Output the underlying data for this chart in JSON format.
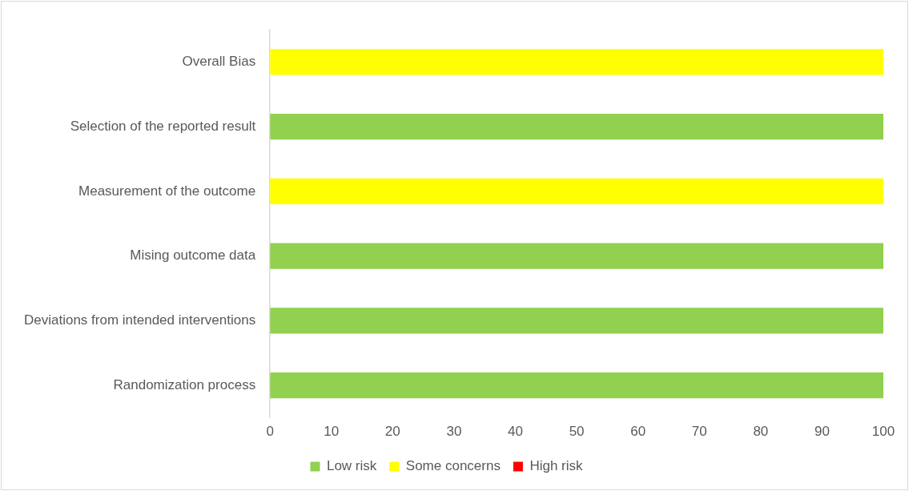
{
  "chart_data": {
    "type": "bar",
    "orientation": "horizontal",
    "stacked": true,
    "categories": [
      "Overall Bias",
      "Selection of the reported result",
      "Measurement of the outcome",
      "Mising outcome data",
      "Deviations from intended interventions",
      "Randomization process"
    ],
    "series": [
      {
        "name": "Low risk",
        "color": "#92d050",
        "values": [
          0,
          100,
          0,
          100,
          100,
          100
        ]
      },
      {
        "name": "Some concerns",
        "color": "#ffff00",
        "values": [
          100,
          0,
          100,
          0,
          0,
          0
        ]
      },
      {
        "name": "High risk",
        "color": "#ff0000",
        "values": [
          0,
          0,
          0,
          0,
          0,
          0
        ]
      }
    ],
    "xlim": [
      0,
      100
    ],
    "xticks": [
      0,
      10,
      20,
      30,
      40,
      50,
      60,
      70,
      80,
      90,
      100
    ],
    "grid": false,
    "legend": "bottom"
  }
}
